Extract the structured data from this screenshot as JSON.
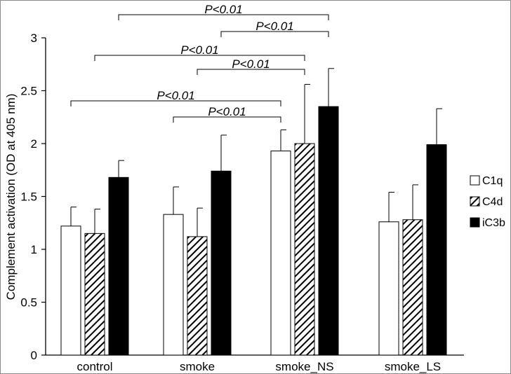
{
  "chart_data": {
    "type": "bar",
    "title": "",
    "xlabel": "",
    "ylabel": "Complement activation (OD at 405 nm)",
    "ylim": [
      0,
      3
    ],
    "yticks": [
      "0",
      "0.5",
      "1",
      "1.5",
      "2",
      "2.5",
      "3"
    ],
    "categories": [
      "control",
      "smoke",
      "smoke_NS",
      "smoke_LS"
    ],
    "series": [
      {
        "name": "C1q",
        "values": [
          1.22,
          1.33,
          1.93,
          1.26
        ],
        "errors": [
          0.18,
          0.26,
          0.2,
          0.28
        ],
        "fill": "white"
      },
      {
        "name": "C4d",
        "values": [
          1.15,
          1.12,
          2.0,
          1.28
        ],
        "errors": [
          0.23,
          0.27,
          0.56,
          0.33
        ],
        "fill": "hatched"
      },
      {
        "name": "iC3b",
        "values": [
          1.68,
          1.74,
          2.35,
          1.99
        ],
        "errors": [
          0.16,
          0.34,
          0.36,
          0.34
        ],
        "fill": "black"
      }
    ],
    "legend_position": "right",
    "grid": false,
    "significance": [
      {
        "label": "P<0.01",
        "from_category": "control",
        "from_series": "iC3b",
        "to_category": "smoke_NS",
        "to_series": "iC3b"
      },
      {
        "label": "P<0.01",
        "from_category": "smoke",
        "from_series": "iC3b",
        "to_category": "smoke_NS",
        "to_series": "iC3b"
      },
      {
        "label": "P<0.01",
        "from_category": "control",
        "from_series": "C4d",
        "to_category": "smoke_NS",
        "to_series": "C4d"
      },
      {
        "label": "P<0.01",
        "from_category": "smoke",
        "from_series": "C4d",
        "to_category": "smoke_NS",
        "to_series": "C4d"
      },
      {
        "label": "P<0.01",
        "from_category": "control",
        "from_series": "C1q",
        "to_category": "smoke_NS",
        "to_series": "C1q"
      },
      {
        "label": "P<0.01",
        "from_category": "smoke",
        "from_series": "C1q",
        "to_category": "smoke_NS",
        "to_series": "C1q"
      }
    ],
    "colors": {
      "bar_edge": "#000000",
      "solid": "#000000",
      "hollow": "#ffffff"
    }
  }
}
